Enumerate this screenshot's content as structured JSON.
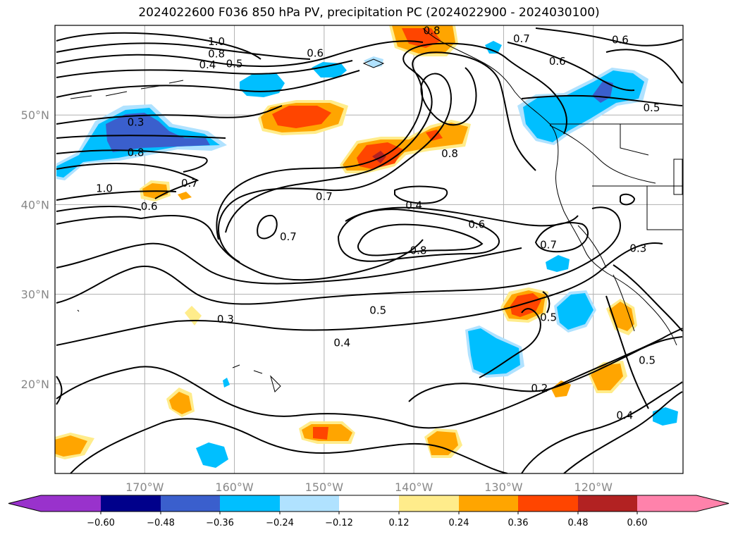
{
  "chart_data": {
    "type": "map-contour",
    "title": "2024022600 F036 850 hPa PV, precipitation PC (2024022900 - 2024030100)",
    "projection": "PlateCarree",
    "lon_range": [
      180,
      110
    ],
    "lat_range": [
      10,
      60
    ],
    "lon_ticks": [
      {
        "value": 170,
        "label": "170°W"
      },
      {
        "value": 160,
        "label": "160°W"
      },
      {
        "value": 150,
        "label": "150°W"
      },
      {
        "value": 140,
        "label": "140°W"
      },
      {
        "value": 130,
        "label": "130°W"
      },
      {
        "value": 120,
        "label": "120°W"
      }
    ],
    "lat_ticks": [
      {
        "value": 50,
        "label": "50°N"
      },
      {
        "value": 40,
        "label": "40°N"
      },
      {
        "value": 30,
        "label": "30°N"
      },
      {
        "value": 20,
        "label": "20°N"
      }
    ],
    "grid": true,
    "contour_labels": [
      {
        "lon": 171,
        "lat": 49.2,
        "text": "0.3"
      },
      {
        "lon": 171,
        "lat": 45.8,
        "text": "0.8"
      },
      {
        "lon": 174.5,
        "lat": 41.8,
        "text": "1.0"
      },
      {
        "lon": 169.5,
        "lat": 39.8,
        "text": "0.6"
      },
      {
        "lon": 165,
        "lat": 42.4,
        "text": "0.7"
      },
      {
        "lon": 162,
        "lat": 58.2,
        "text": "1.0"
      },
      {
        "lon": 162,
        "lat": 56.8,
        "text": "0.8"
      },
      {
        "lon": 163,
        "lat": 55.6,
        "text": "0.4"
      },
      {
        "lon": 160,
        "lat": 55.7,
        "text": "0.5"
      },
      {
        "lon": 151,
        "lat": 56.9,
        "text": "0.6"
      },
      {
        "lon": 138,
        "lat": 59.4,
        "text": "0.8"
      },
      {
        "lon": 128,
        "lat": 58.5,
        "text": "0.7"
      },
      {
        "lon": 117,
        "lat": 58.4,
        "text": "0.6"
      },
      {
        "lon": 124,
        "lat": 56.0,
        "text": "0.6"
      },
      {
        "lon": 113.5,
        "lat": 50.8,
        "text": "0.5"
      },
      {
        "lon": 136,
        "lat": 45.7,
        "text": "0.8"
      },
      {
        "lon": 150,
        "lat": 40.9,
        "text": "0.7"
      },
      {
        "lon": 140,
        "lat": 39.9,
        "text": "0.4"
      },
      {
        "lon": 133,
        "lat": 37.8,
        "text": "0.6"
      },
      {
        "lon": 154,
        "lat": 36.4,
        "text": "0.7"
      },
      {
        "lon": 139.5,
        "lat": 34.9,
        "text": "0.8"
      },
      {
        "lon": 125,
        "lat": 35.5,
        "text": "0.7"
      },
      {
        "lon": 144,
        "lat": 28.2,
        "text": "0.5"
      },
      {
        "lon": 148,
        "lat": 24.6,
        "text": "0.4"
      },
      {
        "lon": 161,
        "lat": 27.2,
        "text": "0.3"
      },
      {
        "lon": 125,
        "lat": 27.4,
        "text": "0.5"
      },
      {
        "lon": 115,
        "lat": 35.1,
        "text": "0.3"
      },
      {
        "lon": 114,
        "lat": 22.6,
        "text": "0.5"
      },
      {
        "lon": 126,
        "lat": 19.5,
        "text": "0.2"
      },
      {
        "lon": 116.5,
        "lat": 16.5,
        "text": "0.4"
      }
    ],
    "colorbar": {
      "levels": [
        -0.6,
        -0.48,
        -0.36,
        -0.24,
        -0.12,
        0.12,
        0.24,
        0.36,
        0.48,
        0.6
      ],
      "tick_labels": [
        "−0.60",
        "−0.48",
        "−0.36",
        "−0.24",
        "−0.12",
        "0.12",
        "0.24",
        "0.36",
        "0.48",
        "0.60"
      ],
      "colors": [
        "#9932cc",
        "#00008b",
        "#3a5fcd",
        "#00bfff",
        "#b0e2ff",
        "#ffffff",
        "#ffec8b",
        "#ffa500",
        "#ff4500",
        "#b22222",
        "#ff82ab"
      ],
      "extend": "both"
    }
  }
}
